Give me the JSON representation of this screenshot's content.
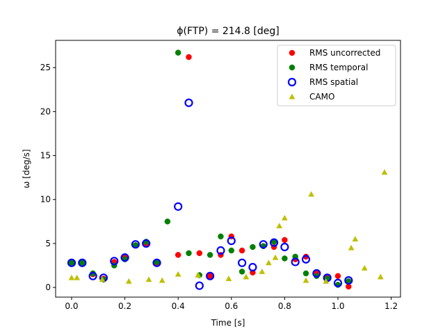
{
  "chart_data": {
    "type": "scatter",
    "title": "ϕ(FTP) = 214.8 [deg]",
    "xlabel": "Time [s]",
    "ylabel": "ω [deg/s]",
    "xlim": [
      -0.06,
      1.235
    ],
    "ylim": [
      -1.1,
      28.1
    ],
    "xticks": [
      0.0,
      0.2,
      0.4,
      0.6,
      0.8,
      1.0,
      1.2
    ],
    "xtick_labels": [
      "0.0",
      "0.2",
      "0.4",
      "0.6",
      "0.8",
      "1.0",
      "1.2"
    ],
    "yticks": [
      0,
      5,
      10,
      15,
      20,
      25
    ],
    "ytick_labels": [
      "0",
      "5",
      "10",
      "15",
      "20",
      "25"
    ],
    "grid": false,
    "legend_position": "top-right",
    "series": [
      {
        "name": "RMS uncorrected",
        "marker": "filled-circle",
        "color": "#ff0000",
        "x": [
          0.0,
          0.04,
          0.08,
          0.12,
          0.16,
          0.2,
          0.24,
          0.28,
          0.32,
          0.4,
          0.44,
          0.48,
          0.52,
          0.56,
          0.6,
          0.64,
          0.68,
          0.72,
          0.76,
          0.8,
          0.84,
          0.88,
          0.92,
          0.96,
          1.0,
          1.04
        ],
        "y": [
          2.9,
          2.9,
          1.5,
          1.0,
          2.9,
          3.4,
          4.8,
          5.0,
          2.8,
          3.7,
          26.2,
          3.9,
          1.3,
          3.7,
          5.8,
          4.2,
          1.7,
          4.7,
          4.6,
          5.4,
          3.2,
          3.5,
          1.7,
          1.1,
          1.3,
          0.1
        ]
      },
      {
        "name": "RMS temporal",
        "marker": "filled-circle",
        "color": "#008000",
        "x": [
          0.0,
          0.04,
          0.08,
          0.12,
          0.16,
          0.2,
          0.24,
          0.28,
          0.32,
          0.36,
          0.4,
          0.44,
          0.48,
          0.52,
          0.56,
          0.6,
          0.64,
          0.68,
          0.72,
          0.76,
          0.8,
          0.84,
          0.88,
          0.92,
          0.96,
          1.0,
          1.04
        ],
        "y": [
          2.8,
          2.8,
          1.6,
          0.9,
          2.5,
          3.2,
          4.8,
          5.2,
          2.9,
          7.5,
          26.7,
          3.9,
          1.4,
          3.7,
          5.8,
          4.2,
          1.8,
          4.6,
          4.7,
          5.2,
          3.3,
          3.5,
          1.6,
          1.3,
          1.0,
          0.3,
          0.7
        ]
      },
      {
        "name": "RMS spatial",
        "marker": "hollow-circle",
        "color": "#0000ff",
        "x": [
          0.0,
          0.04,
          0.08,
          0.12,
          0.16,
          0.2,
          0.24,
          0.28,
          0.32,
          0.4,
          0.44,
          0.48,
          0.52,
          0.56,
          0.6,
          0.64,
          0.68,
          0.72,
          0.76,
          0.8,
          0.84,
          0.88,
          0.92,
          0.96,
          1.0,
          1.04
        ],
        "y": [
          2.8,
          2.8,
          1.3,
          1.1,
          3.0,
          3.4,
          4.9,
          5.0,
          2.8,
          9.2,
          21.0,
          0.2,
          1.3,
          4.2,
          5.3,
          2.8,
          2.3,
          4.9,
          5.1,
          4.6,
          2.9,
          3.2,
          1.6,
          1.1,
          0.5,
          0.8
        ]
      },
      {
        "name": "CAMO",
        "marker": "triangle",
        "color": "#bfbf00",
        "x": [
          0.0,
          0.02,
          0.115,
          0.215,
          0.29,
          0.34,
          0.4,
          0.475,
          0.59,
          0.655,
          0.715,
          0.74,
          0.765,
          0.78,
          0.8,
          0.88,
          0.9,
          0.955,
          1.05,
          1.065,
          1.1,
          1.16,
          1.175
        ],
        "y": [
          1.1,
          1.1,
          0.9,
          0.7,
          0.9,
          0.8,
          1.5,
          1.4,
          1.0,
          1.2,
          1.8,
          2.8,
          3.4,
          7.0,
          7.9,
          0.8,
          10.6,
          0.7,
          4.5,
          5.5,
          2.2,
          1.2,
          13.1
        ]
      }
    ]
  }
}
